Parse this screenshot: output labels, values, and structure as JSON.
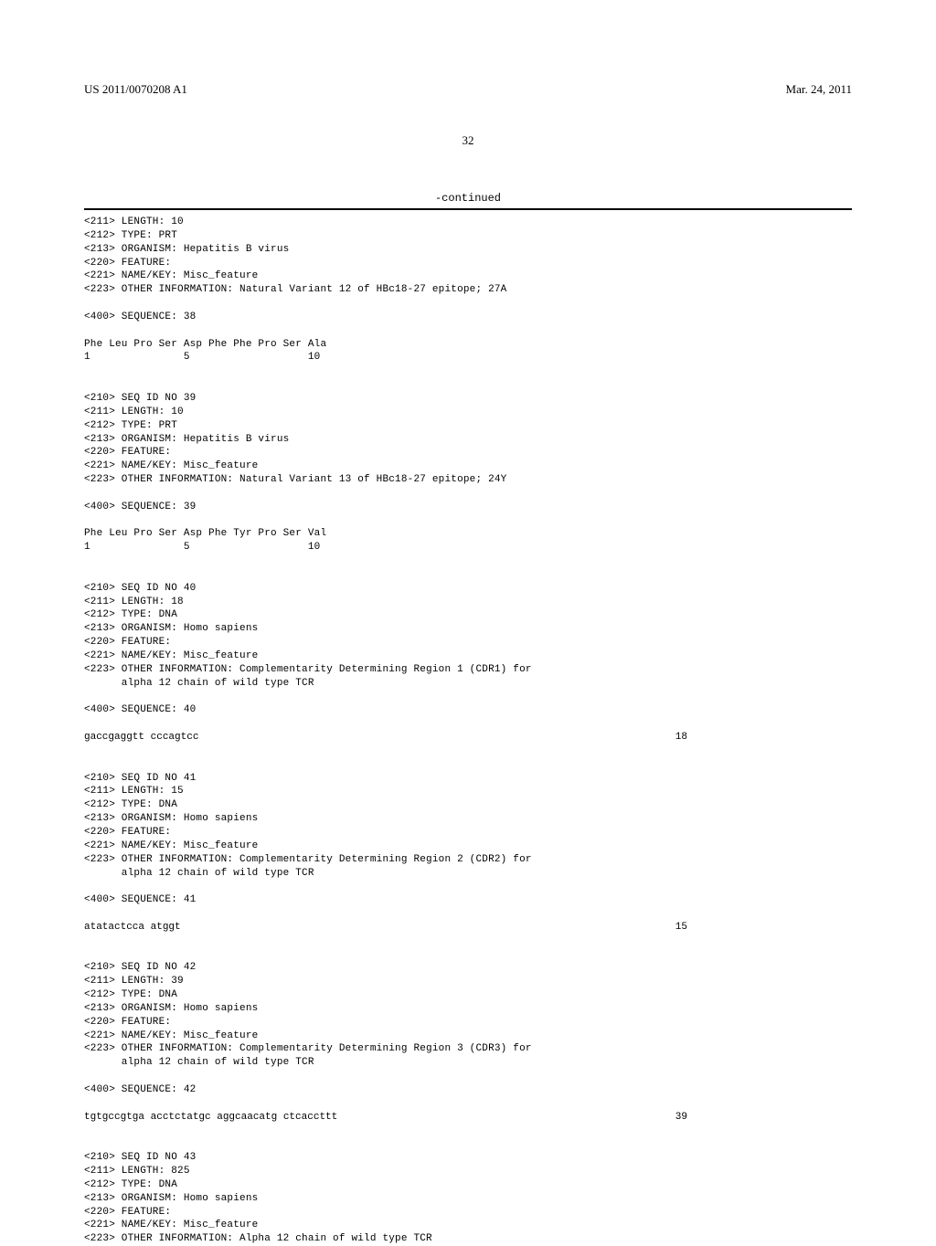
{
  "header": {
    "pub_number": "US 2011/0070208 A1",
    "pub_date": "Mar. 24, 2011"
  },
  "page_number": "32",
  "continued_label": "-continued",
  "entries": [
    {
      "type": "text",
      "lines": [
        "<211> LENGTH: 10",
        "<212> TYPE: PRT",
        "<213> ORGANISM: Hepatitis B virus",
        "<220> FEATURE:",
        "<221> NAME/KEY: Misc_feature",
        "<223> OTHER INFORMATION: Natural Variant 12 of HBc18-27 epitope; 27A"
      ]
    },
    {
      "type": "spacer"
    },
    {
      "type": "text",
      "lines": [
        "<400> SEQUENCE: 38"
      ]
    },
    {
      "type": "spacer"
    },
    {
      "type": "text",
      "lines": [
        "Phe Leu Pro Ser Asp Phe Phe Pro Ser Ala",
        "1               5                   10"
      ]
    },
    {
      "type": "bigspacer"
    },
    {
      "type": "text",
      "lines": [
        "<210> SEQ ID NO 39",
        "<211> LENGTH: 10",
        "<212> TYPE: PRT",
        "<213> ORGANISM: Hepatitis B virus",
        "<220> FEATURE:",
        "<221> NAME/KEY: Misc_feature",
        "<223> OTHER INFORMATION: Natural Variant 13 of HBc18-27 epitope; 24Y"
      ]
    },
    {
      "type": "spacer"
    },
    {
      "type": "text",
      "lines": [
        "<400> SEQUENCE: 39"
      ]
    },
    {
      "type": "spacer"
    },
    {
      "type": "text",
      "lines": [
        "Phe Leu Pro Ser Asp Phe Tyr Pro Ser Val",
        "1               5                   10"
      ]
    },
    {
      "type": "bigspacer"
    },
    {
      "type": "text",
      "lines": [
        "<210> SEQ ID NO 40",
        "<211> LENGTH: 18",
        "<212> TYPE: DNA",
        "<213> ORGANISM: Homo sapiens",
        "<220> FEATURE:",
        "<221> NAME/KEY: Misc_feature",
        "<223> OTHER INFORMATION: Complementarity Determining Region 1 (CDR1) for",
        "      alpha 12 chain of wild type TCR"
      ]
    },
    {
      "type": "spacer"
    },
    {
      "type": "text",
      "lines": [
        "<400> SEQUENCE: 40"
      ]
    },
    {
      "type": "spacer"
    },
    {
      "type": "seqrow",
      "sequence": "gaccgaggtt cccagtcc",
      "number": "18"
    },
    {
      "type": "bigspacer"
    },
    {
      "type": "text",
      "lines": [
        "<210> SEQ ID NO 41",
        "<211> LENGTH: 15",
        "<212> TYPE: DNA",
        "<213> ORGANISM: Homo sapiens",
        "<220> FEATURE:",
        "<221> NAME/KEY: Misc_feature",
        "<223> OTHER INFORMATION: Complementarity Determining Region 2 (CDR2) for",
        "      alpha 12 chain of wild type TCR"
      ]
    },
    {
      "type": "spacer"
    },
    {
      "type": "text",
      "lines": [
        "<400> SEQUENCE: 41"
      ]
    },
    {
      "type": "spacer"
    },
    {
      "type": "seqrow",
      "sequence": "atatactcca atggt",
      "number": "15"
    },
    {
      "type": "bigspacer"
    },
    {
      "type": "text",
      "lines": [
        "<210> SEQ ID NO 42",
        "<211> LENGTH: 39",
        "<212> TYPE: DNA",
        "<213> ORGANISM: Homo sapiens",
        "<220> FEATURE:",
        "<221> NAME/KEY: Misc_feature",
        "<223> OTHER INFORMATION: Complementarity Determining Region 3 (CDR3) for",
        "      alpha 12 chain of wild type TCR"
      ]
    },
    {
      "type": "spacer"
    },
    {
      "type": "text",
      "lines": [
        "<400> SEQUENCE: 42"
      ]
    },
    {
      "type": "spacer"
    },
    {
      "type": "seqrow",
      "sequence": "tgtgccgtga acctctatgc aggcaacatg ctcaccttt",
      "number": "39"
    },
    {
      "type": "bigspacer"
    },
    {
      "type": "text",
      "lines": [
        "<210> SEQ ID NO 43",
        "<211> LENGTH: 825",
        "<212> TYPE: DNA",
        "<213> ORGANISM: Homo sapiens",
        "<220> FEATURE:",
        "<221> NAME/KEY: Misc_feature",
        "<223> OTHER INFORMATION: Alpha 12 chain of wild type TCR"
      ]
    }
  ]
}
